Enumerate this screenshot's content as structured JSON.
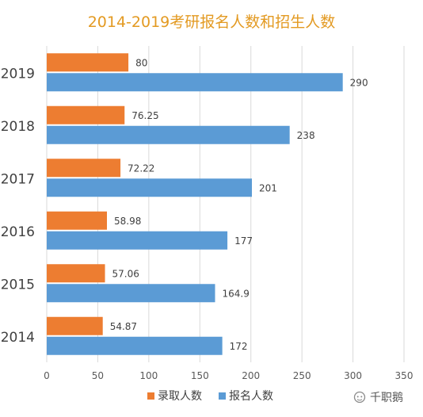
{
  "chart_data": {
    "type": "bar",
    "orientation": "horizontal",
    "title": "2014-2019考研报名人数和招生人数",
    "categories": [
      "2019",
      "2018",
      "2017",
      "2016",
      "2015",
      "2014"
    ],
    "series": [
      {
        "name": "录取人数",
        "color": "#ed7d31",
        "values": [
          80,
          76.25,
          72.22,
          58.98,
          57.06,
          54.87
        ]
      },
      {
        "name": "报名人数",
        "color": "#5b9bd5",
        "values": [
          290,
          238,
          201,
          177,
          164.9,
          172
        ]
      }
    ],
    "data_labels": [
      [
        "80",
        "76.25",
        "72.22",
        "58.98",
        "57.06",
        "54.87"
      ],
      [
        "290",
        "238",
        "201",
        "177",
        "164.9",
        "172"
      ]
    ],
    "xlim": [
      0,
      350
    ],
    "x_ticks": [
      0,
      50,
      100,
      150,
      200,
      250,
      300,
      350
    ],
    "grid": true,
    "legend_position": "bottom",
    "xlabel": "",
    "ylabel": ""
  },
  "watermark": {
    "text": "千职鹅"
  }
}
